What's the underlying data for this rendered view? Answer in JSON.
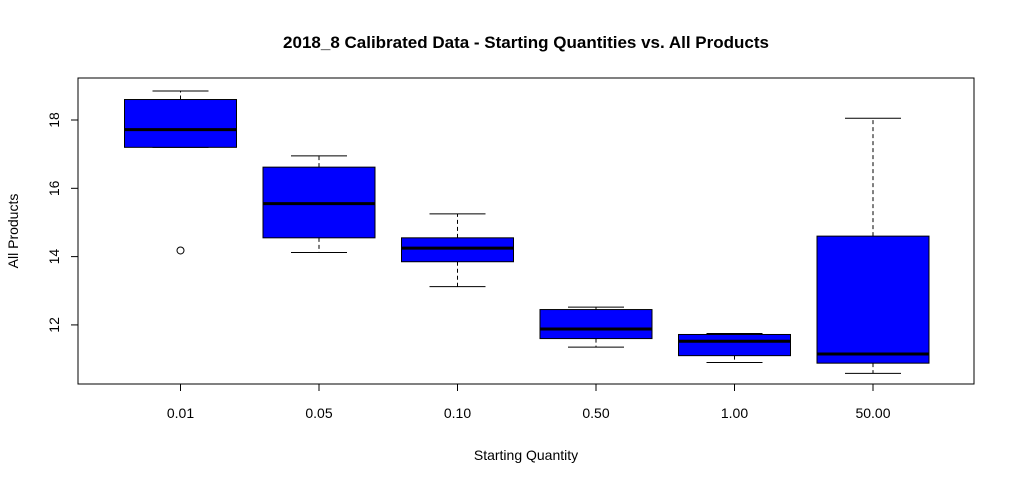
{
  "chart_data": {
    "type": "boxplot",
    "title": "2018_8 Calibrated Data - Starting Quantities vs. All Products",
    "xlabel": "Starting Quantity",
    "ylabel": "All Products",
    "categories": [
      "0.01",
      "0.05",
      "0.10",
      "0.50",
      "1.00",
      "50.00"
    ],
    "boxes": [
      {
        "category": "0.01",
        "whisker_low": 17.2,
        "q1": 17.2,
        "median": 17.72,
        "q3": 18.6,
        "whisker_high": 18.85,
        "outliers": [
          14.18
        ]
      },
      {
        "category": "0.05",
        "whisker_low": 14.12,
        "q1": 14.55,
        "median": 15.55,
        "q3": 16.62,
        "whisker_high": 16.95,
        "outliers": []
      },
      {
        "category": "0.10",
        "whisker_low": 13.12,
        "q1": 13.85,
        "median": 14.25,
        "q3": 14.55,
        "whisker_high": 15.25,
        "outliers": []
      },
      {
        "category": "0.50",
        "whisker_low": 11.35,
        "q1": 11.6,
        "median": 11.88,
        "q3": 12.45,
        "whisker_high": 12.52,
        "outliers": []
      },
      {
        "category": "1.00",
        "whisker_low": 10.9,
        "q1": 11.1,
        "median": 11.52,
        "q3": 11.72,
        "whisker_high": 11.75,
        "outliers": []
      },
      {
        "category": "50.00",
        "whisker_low": 10.58,
        "q1": 10.88,
        "median": 11.15,
        "q3": 14.6,
        "whisker_high": 18.05,
        "outliers": []
      }
    ],
    "yticks": [
      12,
      14,
      16,
      18
    ],
    "ylim": [
      10.27,
      19.23
    ],
    "box_color": "#0000ff",
    "grid": false,
    "legend": "none"
  }
}
